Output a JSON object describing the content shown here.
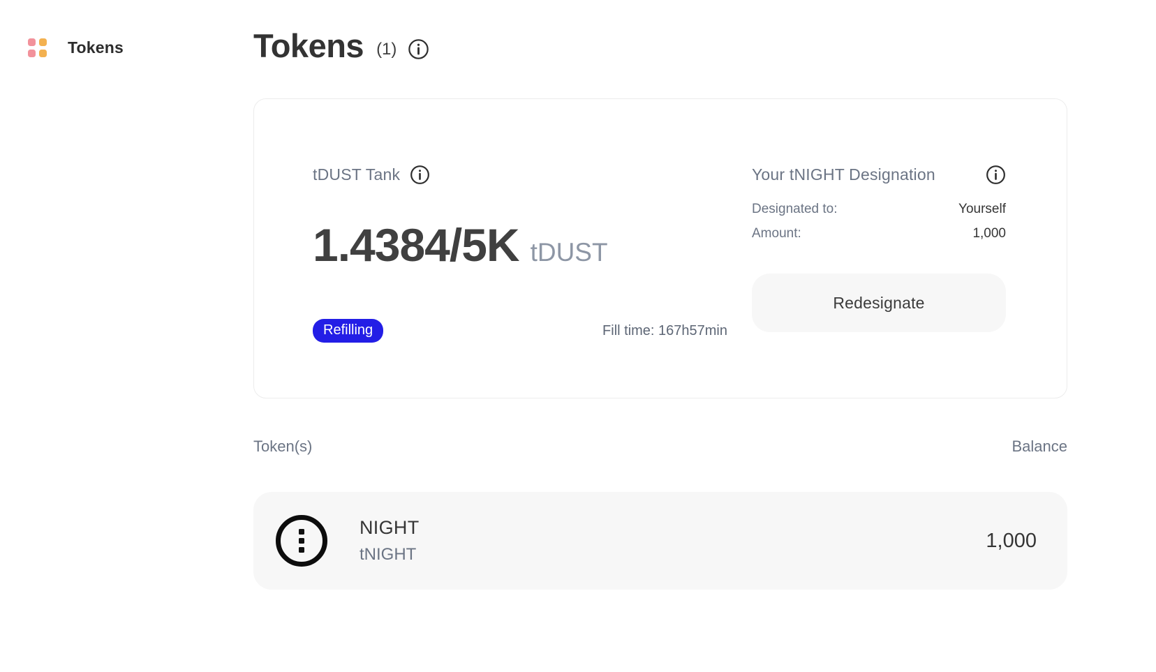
{
  "colors": {
    "accent_blue": "#231ee6",
    "icon_pink": "#f2929b",
    "icon_orange": "#f3b150",
    "fill_lavender": "#c9c6f2",
    "surface_light": "#f7f7f7"
  },
  "sidebar": {
    "item_label": "Tokens"
  },
  "header": {
    "title": "Tokens",
    "count": "(1)"
  },
  "tank_card": {
    "tank": {
      "title": "tDUST Tank",
      "amount": "1.4384/5K",
      "unit": "tDUST",
      "progress_percent": 0.03,
      "status_badge": "Refilling",
      "fill_time": "Fill time: 167h57min"
    },
    "designation": {
      "title": "Your tNIGHT Designation",
      "rows": [
        {
          "label": "Designated to:",
          "value": "Yourself"
        },
        {
          "label": "Amount:",
          "value": "1,000"
        }
      ],
      "button_label": "Redesignate"
    }
  },
  "token_list": {
    "columns": {
      "left": "Token(s)",
      "right": "Balance"
    },
    "tokens": [
      {
        "name": "NIGHT",
        "symbol": "tNIGHT",
        "balance": "1,000"
      }
    ]
  }
}
